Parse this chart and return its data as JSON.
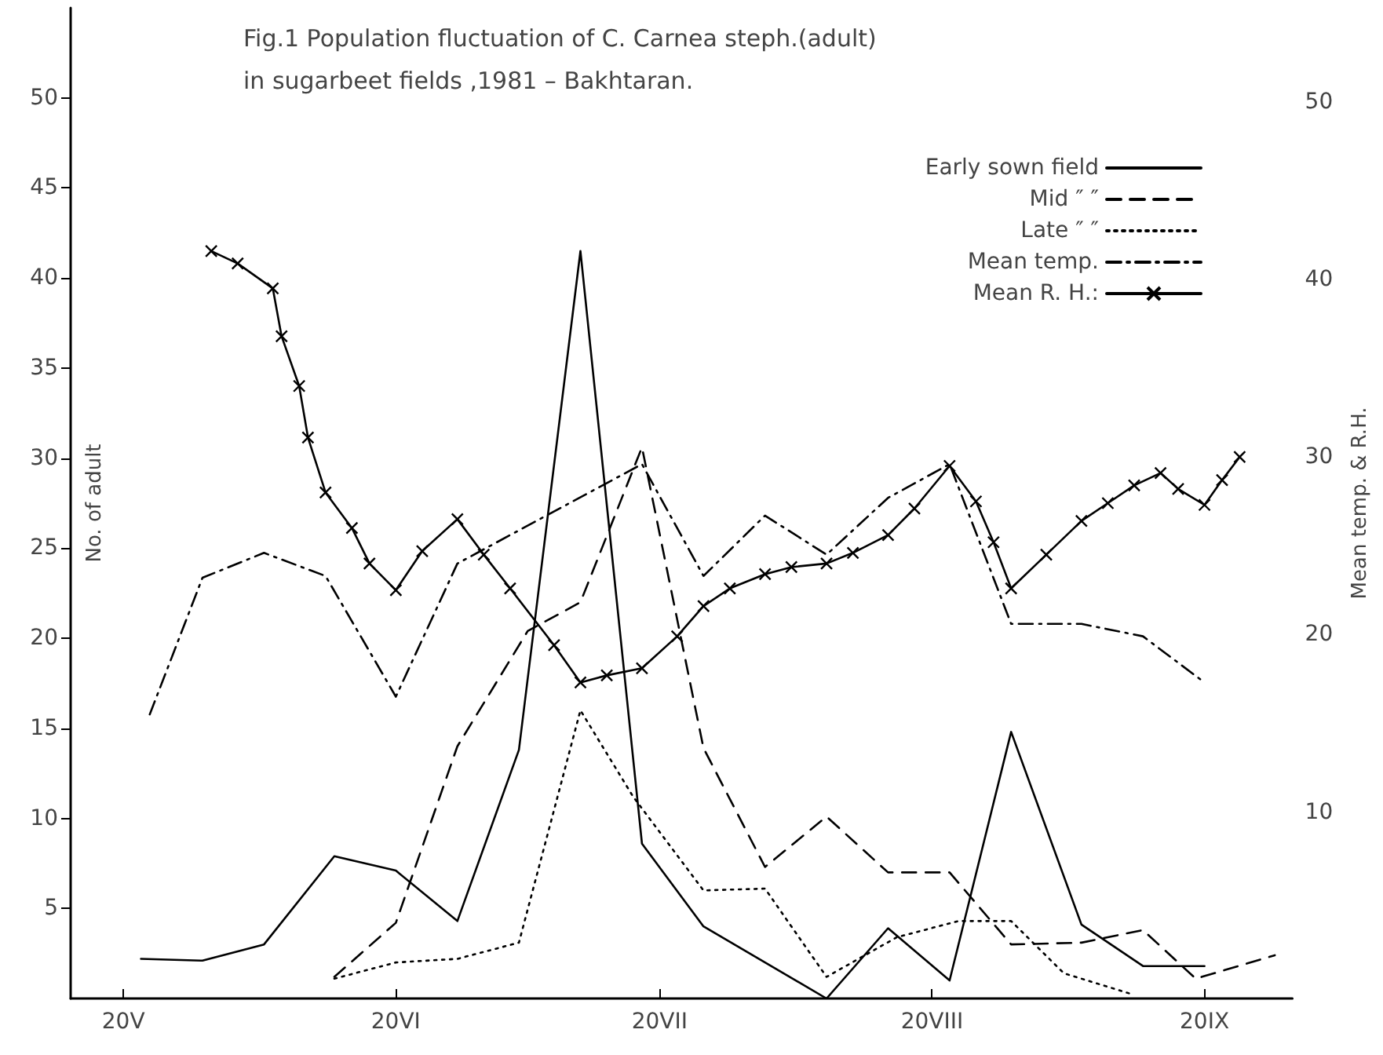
{
  "chart_data": {
    "type": "line",
    "title": "Fig.1 Population fluctuation of C. Carnea steph.(adult)",
    "subtitle": "in sugarbeet fields ,1981 – Bakhtaran.",
    "ylabel": "No. of adult",
    "y2label": "Mean temp. & R.H.",
    "xlim": [
      "--05-14",
      "--09-30"
    ],
    "xticks": [
      {
        "value": "--05-20",
        "label": "20V"
      },
      {
        "value": "--06-20",
        "label": "20VI"
      },
      {
        "value": "--07-20",
        "label": "20VII"
      },
      {
        "value": "--08-20",
        "label": "20VIII"
      },
      {
        "value": "--09-20",
        "label": "20IX"
      }
    ],
    "ylim": [
      0,
      55
    ],
    "yticks": [
      5,
      10,
      15,
      20,
      25,
      30,
      35,
      40,
      45,
      50
    ],
    "y2lim": [
      -0.5,
      55.3
    ],
    "y2ticks": [
      10,
      20,
      30,
      40,
      50
    ],
    "grid": false,
    "legend": "top right",
    "series": [
      {
        "name": "Early sown field",
        "color": "#000000",
        "line_style": "solid",
        "marker": "none",
        "x": [
          "--05-22",
          "--05-29",
          "--06-05",
          "--06-13",
          "--06-20",
          "--06-27",
          "--07-04",
          "--07-11",
          "--07-18",
          "--07-25",
          "--08-08",
          "--08-15",
          "--08-22",
          "--08-29",
          "--09-06",
          "--09-13",
          "--09-20"
        ],
        "values": [
          2.2,
          2.1,
          3.0,
          7.9,
          7.1,
          4.3,
          13.8,
          41.5,
          8.6,
          4.0,
          0,
          3.9,
          1.0,
          14.8,
          4.1,
          1.8,
          1.8
        ]
      },
      {
        "name": "Mid ″ ″",
        "color": "#000000",
        "line_style": "dashed",
        "marker": "none",
        "x": [
          "--06-13",
          "--06-20",
          "--06-27",
          "--07-05",
          "--07-11",
          "--07-18",
          "--07-25",
          "--08-01",
          "--08-08",
          "--08-15",
          "--08-22",
          "--08-29",
          "--09-06",
          "--09-13",
          "--09-19",
          "--09-28"
        ],
        "values": [
          1.2,
          4.2,
          14.0,
          20.4,
          22.0,
          30.6,
          13.9,
          7.3,
          10.1,
          7.0,
          7.0,
          3.0,
          3.1,
          3.8,
          1.1,
          2.4
        ]
      },
      {
        "name": "Late ″ ″",
        "color": "#000000",
        "line_style": "dotted",
        "marker": "none",
        "x": [
          "--06-13",
          "--06-20",
          "--06-27",
          "--07-04",
          "--07-11",
          "--07-17",
          "--07-25",
          "--08-01",
          "--08-08",
          "--08-16",
          "--08-23",
          "--08-29",
          "--09-04",
          "--09-12"
        ],
        "values": [
          1.1,
          2.0,
          2.2,
          3.1,
          16.0,
          11.2,
          6.0,
          6.1,
          1.2,
          3.4,
          4.3,
          4.3,
          1.4,
          0.2
        ]
      },
      {
        "name": "Mean temp.",
        "color": "#000000",
        "line_style": "dashdot",
        "marker": "none",
        "axis": "y2",
        "x": [
          "--05-23",
          "--05-29",
          "--06-05",
          "--06-12",
          "--06-20",
          "--06-27",
          "--07-18",
          "--07-25",
          "--08-01",
          "--08-08",
          "--08-15",
          "--08-22",
          "--08-29",
          "--09-06",
          "--09-13",
          "--09-20"
        ],
        "values": [
          15.5,
          23.2,
          24.6,
          23.3,
          16.5,
          24.0,
          29.6,
          23.3,
          26.7,
          24.5,
          27.7,
          29.6,
          20.6,
          20.6,
          19.9,
          17.3
        ]
      },
      {
        "name": "Mean R. H.:",
        "color": "#000000",
        "line_style": "solid",
        "marker": "cross",
        "axis": "y2",
        "x": [
          "--05-30",
          "--06-02",
          "--06-06",
          "--06-07",
          "--06-09",
          "--06-10",
          "--06-12",
          "--06-15",
          "--06-17",
          "--06-20",
          "--06-23",
          "--06-27",
          "--06-30",
          "--07-03",
          "--07-08",
          "--07-11",
          "--07-14",
          "--07-18",
          "--07-22",
          "--07-25",
          "--07-28",
          "--08-01",
          "--08-04",
          "--08-08",
          "--08-11",
          "--08-15",
          "--08-18",
          "--08-22",
          "--08-25",
          "--08-27",
          "--08-29",
          "--09-02",
          "--09-06",
          "--09-09",
          "--09-12",
          "--09-15",
          "--09-17",
          "--09-20",
          "--09-22",
          "--09-24"
        ],
        "values": [
          41.6,
          40.9,
          39.5,
          36.8,
          34.0,
          31.1,
          28.0,
          26.0,
          24.0,
          22.5,
          24.7,
          26.5,
          24.5,
          22.6,
          19.4,
          17.3,
          17.7,
          18.1,
          19.9,
          21.6,
          22.6,
          23.4,
          23.8,
          24.0,
          24.6,
          25.6,
          27.1,
          29.5,
          27.5,
          25.2,
          22.6,
          24.5,
          26.4,
          27.4,
          28.4,
          29.1,
          28.2,
          27.3,
          28.7,
          30.0
        ]
      }
    ]
  }
}
